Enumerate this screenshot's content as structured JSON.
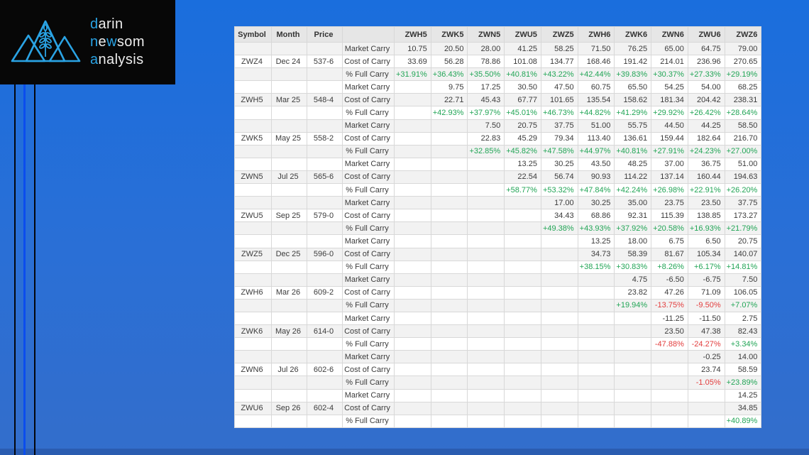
{
  "logo": {
    "lines": [
      {
        "segments": [
          {
            "text": "d",
            "accent": true
          },
          {
            "text": "arin",
            "accent": false
          }
        ]
      },
      {
        "segments": [
          {
            "text": "n",
            "accent": true
          },
          {
            "text": "e",
            "accent": false
          },
          {
            "text": "w",
            "accent": true
          },
          {
            "text": "som",
            "accent": false
          }
        ]
      },
      {
        "segments": [
          {
            "text": "a",
            "accent": true
          },
          {
            "text": "nalysis",
            "accent": false
          }
        ]
      }
    ],
    "accent_color": "#2aa3e4",
    "text_color": "#ececec"
  },
  "colors": {
    "positive": "#22a556",
    "negative": "#e23d3d",
    "stripe": "#f2f2f2",
    "header_bg": "#e6e6e6",
    "background_blue": "#2a6fd6"
  },
  "table": {
    "columns": [
      "Symbol",
      "Month",
      "Price",
      "",
      "ZWH5",
      "ZWK5",
      "ZWN5",
      "ZWU5",
      "ZWZ5",
      "ZWH6",
      "ZWK6",
      "ZWN6",
      "ZWU6",
      "ZWZ6"
    ],
    "row_labels": [
      "Market Carry",
      "Cost of Carry",
      "% Full Carry"
    ],
    "groups": [
      {
        "symbol": "ZWZ4",
        "month": "Dec 24",
        "price": "537-6",
        "market_carry": [
          "10.75",
          "20.50",
          "28.00",
          "41.25",
          "58.25",
          "71.50",
          "76.25",
          "65.00",
          "64.75",
          "79.00"
        ],
        "cost_of_carry": [
          "33.69",
          "56.28",
          "78.86",
          "101.08",
          "134.77",
          "168.46",
          "191.42",
          "214.01",
          "236.96",
          "270.65"
        ],
        "pct_full_carry": [
          "+31.91%",
          "+36.43%",
          "+35.50%",
          "+40.81%",
          "+43.22%",
          "+42.44%",
          "+39.83%",
          "+30.37%",
          "+27.33%",
          "+29.19%"
        ]
      },
      {
        "symbol": "ZWH5",
        "month": "Mar 25",
        "price": "548-4",
        "market_carry": [
          "9.75",
          "17.25",
          "30.50",
          "47.50",
          "60.75",
          "65.50",
          "54.25",
          "54.00",
          "68.25"
        ],
        "cost_of_carry": [
          "22.71",
          "45.43",
          "67.77",
          "101.65",
          "135.54",
          "158.62",
          "181.34",
          "204.42",
          "238.31"
        ],
        "pct_full_carry": [
          "+42.93%",
          "+37.97%",
          "+45.01%",
          "+46.73%",
          "+44.82%",
          "+41.29%",
          "+29.92%",
          "+26.42%",
          "+28.64%"
        ]
      },
      {
        "symbol": "ZWK5",
        "month": "May 25",
        "price": "558-2",
        "market_carry": [
          "7.50",
          "20.75",
          "37.75",
          "51.00",
          "55.75",
          "44.50",
          "44.25",
          "58.50"
        ],
        "cost_of_carry": [
          "22.83",
          "45.29",
          "79.34",
          "113.40",
          "136.61",
          "159.44",
          "182.64",
          "216.70"
        ],
        "pct_full_carry": [
          "+32.85%",
          "+45.82%",
          "+47.58%",
          "+44.97%",
          "+40.81%",
          "+27.91%",
          "+24.23%",
          "+27.00%"
        ]
      },
      {
        "symbol": "ZWN5",
        "month": "Jul 25",
        "price": "565-6",
        "market_carry": [
          "13.25",
          "30.25",
          "43.50",
          "48.25",
          "37.00",
          "36.75",
          "51.00"
        ],
        "cost_of_carry": [
          "22.54",
          "56.74",
          "90.93",
          "114.22",
          "137.14",
          "160.44",
          "194.63"
        ],
        "pct_full_carry": [
          "+58.77%",
          "+53.32%",
          "+47.84%",
          "+42.24%",
          "+26.98%",
          "+22.91%",
          "+26.20%"
        ]
      },
      {
        "symbol": "ZWU5",
        "month": "Sep 25",
        "price": "579-0",
        "market_carry": [
          "17.00",
          "30.25",
          "35.00",
          "23.75",
          "23.50",
          "37.75"
        ],
        "cost_of_carry": [
          "34.43",
          "68.86",
          "92.31",
          "115.39",
          "138.85",
          "173.27"
        ],
        "pct_full_carry": [
          "+49.38%",
          "+43.93%",
          "+37.92%",
          "+20.58%",
          "+16.93%",
          "+21.79%"
        ]
      },
      {
        "symbol": "ZWZ5",
        "month": "Dec 25",
        "price": "596-0",
        "market_carry": [
          "13.25",
          "18.00",
          "6.75",
          "6.50",
          "20.75"
        ],
        "cost_of_carry": [
          "34.73",
          "58.39",
          "81.67",
          "105.34",
          "140.07"
        ],
        "pct_full_carry": [
          "+38.15%",
          "+30.83%",
          "+8.26%",
          "+6.17%",
          "+14.81%"
        ]
      },
      {
        "symbol": "ZWH6",
        "month": "Mar 26",
        "price": "609-2",
        "market_carry": [
          "4.75",
          "-6.50",
          "-6.75",
          "7.50"
        ],
        "cost_of_carry": [
          "23.82",
          "47.26",
          "71.09",
          "106.05"
        ],
        "pct_full_carry": [
          "+19.94%",
          "-13.75%",
          "-9.50%",
          "+7.07%"
        ]
      },
      {
        "symbol": "ZWK6",
        "month": "May 26",
        "price": "614-0",
        "market_carry": [
          "-11.25",
          "-11.50",
          "2.75"
        ],
        "cost_of_carry": [
          "23.50",
          "47.38",
          "82.43"
        ],
        "pct_full_carry": [
          "-47.88%",
          "-24.27%",
          "+3.34%"
        ]
      },
      {
        "symbol": "ZWN6",
        "month": "Jul 26",
        "price": "602-6",
        "market_carry": [
          "-0.25",
          "14.00"
        ],
        "cost_of_carry": [
          "23.74",
          "58.59"
        ],
        "pct_full_carry": [
          "-1.05%",
          "+23.89%"
        ]
      },
      {
        "symbol": "ZWU6",
        "month": "Sep 26",
        "price": "602-4",
        "market_carry": [
          "14.25"
        ],
        "cost_of_carry": [
          "34.85"
        ],
        "pct_full_carry": [
          "+40.89%"
        ]
      }
    ]
  }
}
